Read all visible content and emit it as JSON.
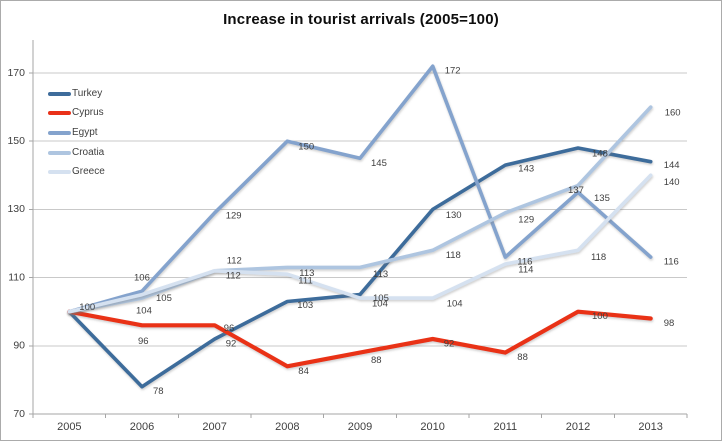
{
  "chart_data": {
    "type": "line",
    "title": "Increase in tourist arrivals (2005=100)",
    "categories": [
      "2005",
      "2006",
      "2007",
      "2008",
      "2009",
      "2010",
      "2011",
      "2012",
      "2013"
    ],
    "series": [
      {
        "name": "Turkey",
        "color": "#3e6c9b",
        "values": [
          100,
          78,
          92,
          103,
          105,
          130,
          143,
          148,
          144
        ]
      },
      {
        "name": "Cyprus",
        "color": "#e93119",
        "values": [
          100,
          96,
          96,
          84,
          88,
          92,
          88,
          100,
          98
        ]
      },
      {
        "name": "Egypt",
        "color": "#84a3cd",
        "values": [
          100,
          106,
          129,
          150,
          145,
          172,
          116,
          135,
          116
        ]
      },
      {
        "name": "Croatia",
        "color": "#aec5e0",
        "values": [
          100,
          104,
          112,
          113,
          113,
          118,
          129,
          137,
          160
        ]
      },
      {
        "name": "Greece",
        "color": "#d5e1f0",
        "values": [
          100,
          105,
          112,
          111,
          104,
          104,
          114,
          118,
          140
        ]
      }
    ],
    "y_ticks": [
      70,
      90,
      110,
      130,
      150,
      170
    ],
    "ylim": [
      70,
      180
    ],
    "xlabel": "",
    "ylabel": "",
    "grid": true,
    "legend_position": "upper-left-inside",
    "data_labels_shown": true,
    "style": {
      "axis_line_color": "#a6a6a6",
      "gridline_color": "#c9c9c9",
      "tick_label_color": "#3f3f3f",
      "data_label_color": "#404040",
      "background": "#ffffff",
      "border_color": "#ababab"
    }
  }
}
